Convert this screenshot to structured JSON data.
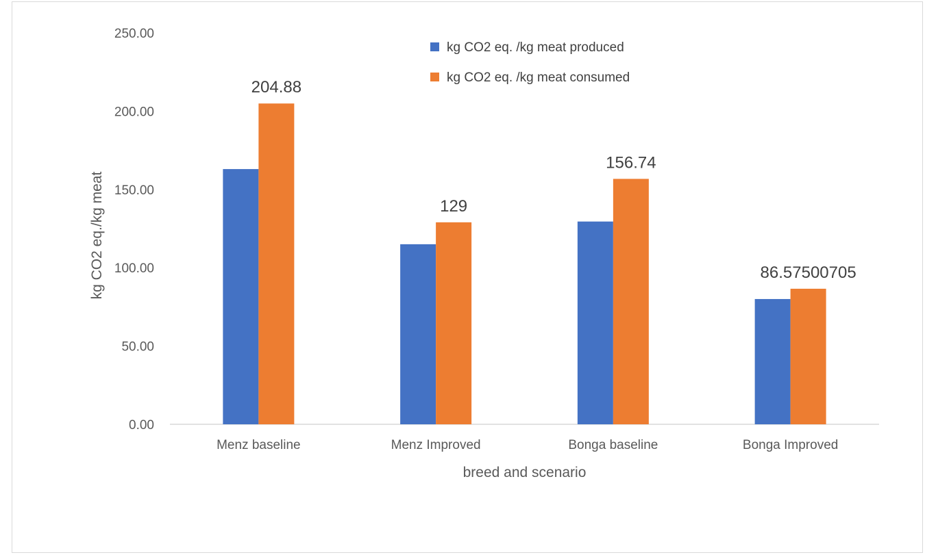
{
  "chart_data": {
    "type": "bar",
    "title": "",
    "xlabel": "breed and scenario",
    "ylabel": "kg CO2 eq./kg meat",
    "ylim": [
      0,
      250
    ],
    "yticks": [
      "0.00",
      "50.00",
      "100.00",
      "150.00",
      "200.00",
      "250.00"
    ],
    "grid": false,
    "legend_position": "top-right",
    "categories": [
      "Menz baseline",
      "Menz Improved",
      "Bonga baseline",
      "Bonga Improved"
    ],
    "series": [
      {
        "name": "kg CO2 eq. /kg meat produced",
        "color": "#4472C4",
        "values": [
          163,
          115,
          129.5,
          80
        ],
        "labels": [
          "",
          "",
          "",
          ""
        ]
      },
      {
        "name": "kg CO2 eq. /kg meat consumed",
        "color": "#ED7D31",
        "values": [
          204.88,
          129,
          156.74,
          86.57500705
        ],
        "labels": [
          "204.88",
          "129",
          "156.74",
          "86.57500705"
        ]
      }
    ]
  }
}
